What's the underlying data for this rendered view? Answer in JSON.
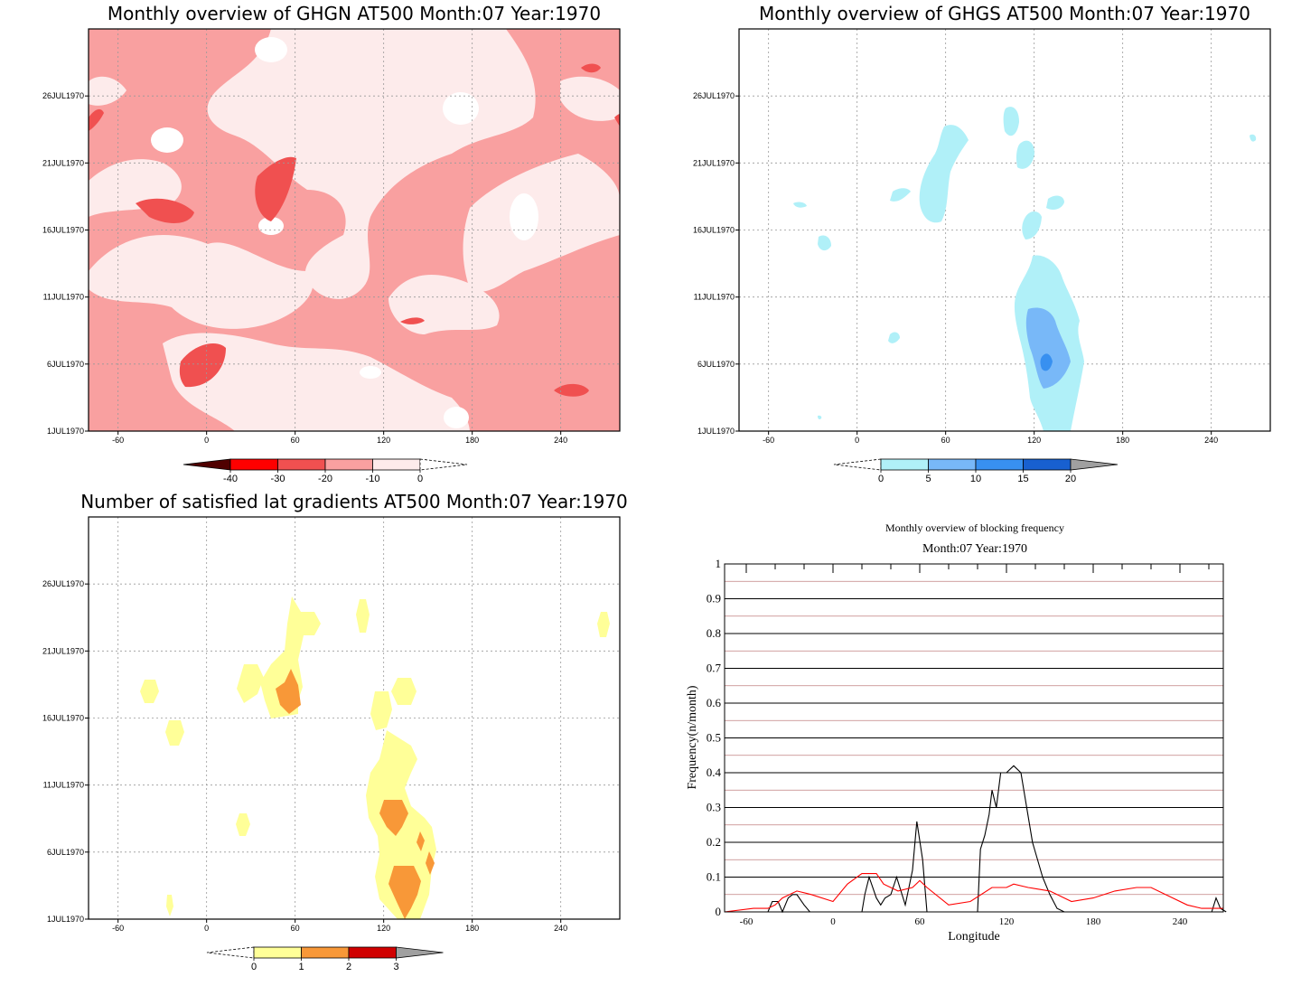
{
  "chart_data": [
    {
      "type": "heatmap",
      "title": "Monthly overview of GHGN AT500 Month:07 Year:1970",
      "x_ticks": [
        -60,
        0,
        60,
        120,
        180,
        240
      ],
      "y_ticks": [
        "1JUL1970",
        "6JUL1970",
        "11JUL1970",
        "16JUL1970",
        "21JUL1970",
        "26JUL1970"
      ],
      "colorbar": {
        "ticks": [
          "-40",
          "-30",
          "-20",
          "-10",
          "0"
        ],
        "colors": [
          "#ff0000",
          "#f05050",
          "#f9a0a0",
          "#fdebeb"
        ]
      },
      "regions": [
        {
          "level": "-10 to 0",
          "x": [
            -20,
            0,
            30,
            60,
            90,
            120,
            150,
            180,
            200,
            240,
            260
          ],
          "y": [
            24,
            22,
            19,
            15,
            10,
            12,
            6,
            20,
            22,
            8,
            3
          ]
        },
        {
          "level": "-30 to -20",
          "x": [
            -40,
            50,
            0,
            130,
            245
          ],
          "y": [
            18,
            21,
            6,
            9,
            4
          ]
        }
      ]
    },
    {
      "type": "heatmap",
      "title": "Monthly overview of GHGS AT500 Month:07 Year:1970",
      "x_ticks": [
        -60,
        0,
        60,
        120,
        180,
        240
      ],
      "y_ticks": [
        "1JUL1970",
        "6JUL1970",
        "11JUL1970",
        "16JUL1970",
        "21JUL1970",
        "26JUL1970"
      ],
      "colorbar": {
        "ticks": [
          "0",
          "5",
          "10",
          "15",
          "20"
        ],
        "colors": [
          "#b0f0f8",
          "#78b8f8",
          "#3890f0",
          "#1860d0"
        ]
      },
      "regions": [
        {
          "level": "0 to 5",
          "x": [
            60,
            110,
            130,
            120,
            25,
            -20,
            270
          ],
          "y": [
            21,
            24,
            22,
            17,
            7,
            15,
            22
          ]
        },
        {
          "level": "5 to 10",
          "x": [
            125
          ],
          "y": [
            6
          ]
        },
        {
          "level": "10 to 15",
          "x": [
            127
          ],
          "y": [
            6
          ]
        }
      ]
    },
    {
      "type": "heatmap",
      "title": "Number of satisfied lat gradients AT500 Month:07 Year:1970",
      "x_ticks": [
        -60,
        0,
        60,
        120,
        180,
        240
      ],
      "y_ticks": [
        "1JUL1970",
        "6JUL1970",
        "11JUL1970",
        "16JUL1970",
        "21JUL1970",
        "26JUL1970"
      ],
      "colorbar": {
        "ticks": [
          "0",
          "1",
          "2",
          "3"
        ],
        "colors": [
          "#ffff98",
          "#f89838",
          "#d00000"
        ]
      },
      "regions": [
        {
          "level": "0 to 1",
          "x": [
            60,
            105,
            -40,
            -20,
            25,
            130,
            270
          ],
          "y": [
            22,
            23,
            18,
            15,
            8,
            10,
            22
          ]
        },
        {
          "level": "1 to 2",
          "x": [
            56,
            125,
            130,
            140
          ],
          "y": [
            18,
            9,
            3,
            6
          ]
        }
      ]
    },
    {
      "type": "line",
      "title": "Monthly overview of blocking frequency",
      "subtitle": "Month:07 Year:1970",
      "xlabel": "Longitude",
      "ylabel": "Frequency(n/month)",
      "xlim": [
        -75,
        270
      ],
      "ylim": [
        0,
        1
      ],
      "x_ticks": [
        -60,
        0,
        60,
        120,
        180,
        240
      ],
      "y_ticks": [
        0,
        0.1,
        0.2,
        0.3,
        0.4,
        0.5,
        0.6,
        0.7,
        0.8,
        0.9,
        1
      ],
      "grid": true,
      "series": [
        {
          "color": "#000000",
          "x": [
            -75,
            -45,
            -42,
            -38,
            -35,
            -31,
            -28,
            -25,
            -20,
            -16,
            20,
            22,
            25,
            30,
            33,
            36,
            40,
            44,
            50,
            55,
            58,
            62,
            65,
            100,
            102,
            105,
            108,
            110,
            113,
            116,
            120,
            125,
            130,
            134,
            138,
            145,
            150,
            155,
            160,
            262,
            265,
            268,
            272
          ],
          "y": [
            0,
            0,
            0.03,
            0.03,
            0,
            0.04,
            0.05,
            0.05,
            0.02,
            0,
            0,
            0.05,
            0.1,
            0.04,
            0.02,
            0.04,
            0.05,
            0.1,
            0.02,
            0.12,
            0.26,
            0.15,
            0,
            0,
            0.18,
            0.22,
            0.28,
            0.35,
            0.3,
            0.4,
            0.4,
            0.42,
            0.4,
            0.3,
            0.2,
            0.1,
            0.05,
            0.01,
            0,
            0,
            0.04,
            0.01,
            0
          ]
        },
        {
          "color": "#ff0000",
          "x": [
            -75,
            -55,
            -45,
            -40,
            -35,
            -25,
            -15,
            0,
            10,
            20,
            30,
            35,
            45,
            55,
            60,
            65,
            80,
            95,
            110,
            120,
            125,
            135,
            150,
            165,
            180,
            195,
            210,
            220,
            230,
            245,
            255,
            270
          ],
          "y": [
            0,
            0.01,
            0.01,
            0.02,
            0.04,
            0.06,
            0.05,
            0.03,
            0.08,
            0.11,
            0.11,
            0.08,
            0.06,
            0.07,
            0.09,
            0.07,
            0.02,
            0.03,
            0.07,
            0.07,
            0.08,
            0.07,
            0.06,
            0.03,
            0.04,
            0.06,
            0.07,
            0.07,
            0.05,
            0.02,
            0.01,
            0.01
          ]
        }
      ]
    }
  ]
}
